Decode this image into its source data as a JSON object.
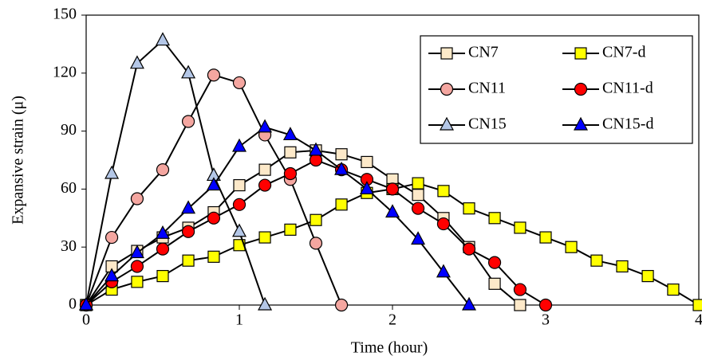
{
  "chart_data": {
    "type": "line",
    "xlabel": "Time (hour)",
    "ylabel": "Expansive strain (μ)",
    "xlim": [
      0,
      4
    ],
    "xticks": [
      0,
      1,
      2,
      3,
      4
    ],
    "ylim": [
      0,
      150
    ],
    "yticks": [
      0,
      30,
      60,
      90,
      120,
      150
    ],
    "grid": false,
    "legend": "upper right",
    "line_color": "#000000",
    "series": [
      {
        "name": "CN7",
        "marker": "square",
        "color": "#fde9c9",
        "x": [
          0,
          0.167,
          0.333,
          0.5,
          0.667,
          0.833,
          1.0,
          1.167,
          1.333,
          1.5,
          1.667,
          1.833,
          2.0,
          2.167,
          2.333,
          2.5,
          2.667,
          2.833
        ],
        "values": [
          0,
          20,
          28,
          35,
          40,
          48,
          62,
          70,
          79,
          80,
          78,
          74,
          65,
          57,
          45,
          30,
          11,
          0
        ]
      },
      {
        "name": "CN7-d",
        "marker": "square",
        "color": "#ffff00",
        "x": [
          0,
          0.167,
          0.333,
          0.5,
          0.667,
          0.833,
          1.0,
          1.167,
          1.333,
          1.5,
          1.667,
          1.833,
          2.0,
          2.167,
          2.333,
          2.5,
          2.667,
          2.833,
          3.0,
          3.167,
          3.333,
          3.5,
          3.667,
          3.833,
          4.0
        ],
        "values": [
          0,
          8,
          12,
          15,
          23,
          25,
          31,
          35,
          39,
          44,
          52,
          58,
          60,
          63,
          59,
          50,
          45,
          40,
          35,
          30,
          23,
          20,
          15,
          8,
          0
        ]
      },
      {
        "name": "CN11",
        "marker": "circle",
        "color": "#f4a6a0",
        "x": [
          0,
          0.167,
          0.333,
          0.5,
          0.667,
          0.833,
          1.0,
          1.167,
          1.333,
          1.5,
          1.667
        ],
        "values": [
          0,
          35,
          55,
          70,
          95,
          119,
          115,
          88,
          65,
          32,
          0
        ]
      },
      {
        "name": "CN11-d",
        "marker": "circle",
        "color": "#ff0000",
        "x": [
          0,
          0.167,
          0.333,
          0.5,
          0.667,
          0.833,
          1.0,
          1.167,
          1.333,
          1.5,
          1.667,
          1.833,
          2.0,
          2.167,
          2.333,
          2.5,
          2.667,
          2.833,
          3.0
        ],
        "values": [
          0,
          12,
          20,
          29,
          38,
          45,
          52,
          62,
          68,
          75,
          70,
          65,
          60,
          50,
          42,
          29,
          22,
          8,
          0
        ]
      },
      {
        "name": "CN15",
        "marker": "triangle",
        "color": "#b4c7e7",
        "x": [
          0,
          0.167,
          0.333,
          0.5,
          0.667,
          0.833,
          1.0,
          1.167
        ],
        "values": [
          0,
          68,
          125,
          137,
          120,
          67,
          38,
          0
        ]
      },
      {
        "name": "CN15-d",
        "marker": "triangle",
        "color": "#0000ff",
        "x": [
          0,
          0.167,
          0.333,
          0.5,
          0.667,
          0.833,
          1.0,
          1.167,
          1.333,
          1.5,
          1.667,
          1.833,
          2.0,
          2.167,
          2.333,
          2.5
        ],
        "values": [
          0,
          15,
          27,
          37,
          50,
          62,
          82,
          92,
          88,
          80,
          70,
          60,
          48,
          34,
          17,
          0
        ]
      }
    ]
  }
}
